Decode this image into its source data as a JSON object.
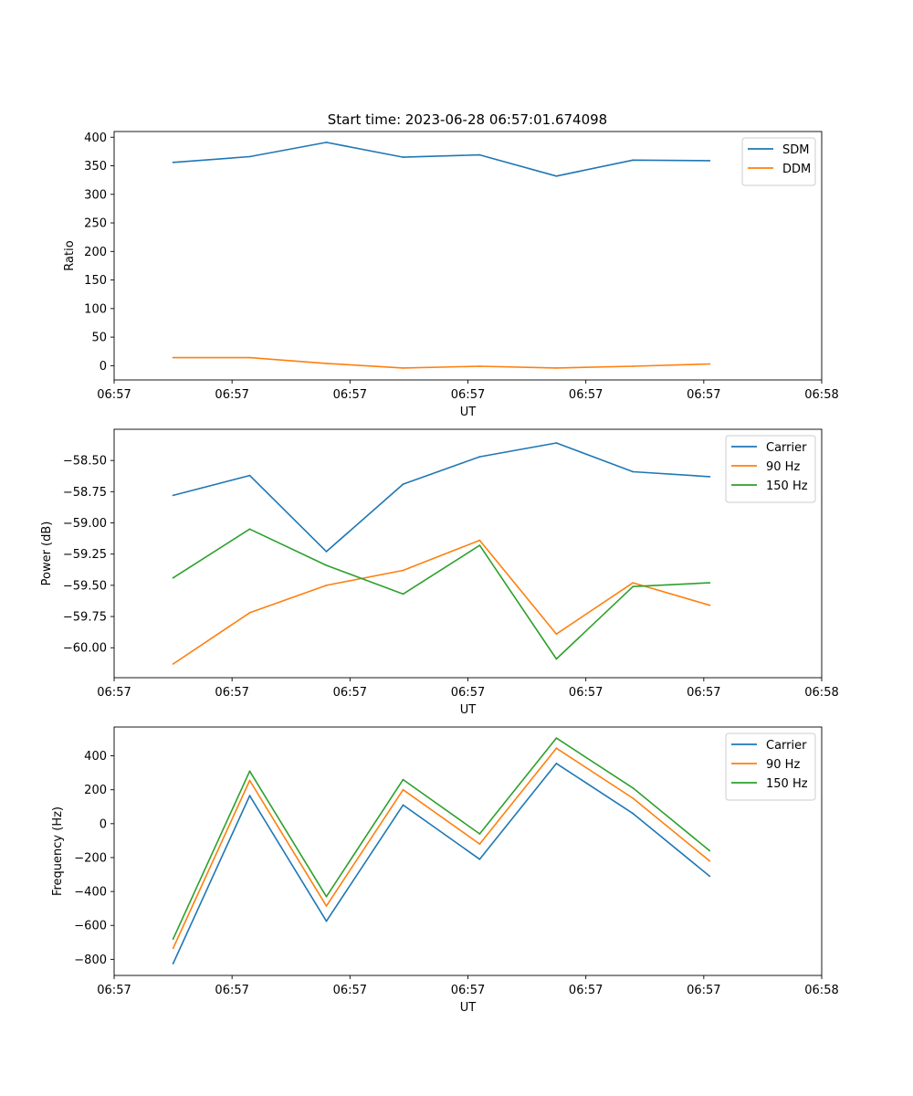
{
  "figure": {
    "title": "Start time: 2023-06-28 06:57:01.674098"
  },
  "chart_data": [
    {
      "type": "line",
      "title": "Start time: 2023-06-28 06:57:01.674098",
      "xlabel": "UT",
      "ylabel": "Ratio",
      "x_tick_labels": [
        "06:57",
        "06:57",
        "06:57",
        "06:57",
        "06:57",
        "06:57",
        "06:58"
      ],
      "xlim": [
        0,
        6
      ],
      "x": [
        0.5,
        1.15,
        1.8,
        2.45,
        3.1,
        3.75,
        4.4,
        5.05
      ],
      "ylim": [
        -25,
        410
      ],
      "y_ticks": [
        0,
        50,
        100,
        150,
        200,
        250,
        300,
        350,
        400
      ],
      "y_tick_labels": [
        "0",
        "50",
        "100",
        "150",
        "200",
        "250",
        "300",
        "350",
        "400"
      ],
      "legend_position": "top-right",
      "grid": false,
      "series": [
        {
          "name": "SDM",
          "color": "#1f77b4",
          "values": [
            356,
            366,
            391,
            365,
            369,
            332,
            360,
            359
          ]
        },
        {
          "name": "DDM",
          "color": "#ff7f0e",
          "values": [
            14,
            14,
            4,
            -4,
            -1,
            -4,
            -1,
            3
          ]
        }
      ]
    },
    {
      "type": "line",
      "xlabel": "UT",
      "ylabel": "Power (dB)",
      "x_tick_labels": [
        "06:57",
        "06:57",
        "06:57",
        "06:57",
        "06:57",
        "06:57",
        "06:58"
      ],
      "xlim": [
        0,
        6
      ],
      "x": [
        0.5,
        1.15,
        1.8,
        2.45,
        3.1,
        3.75,
        4.4,
        5.05
      ],
      "ylim": [
        -60.24,
        -58.25
      ],
      "y_ticks": [
        -60.0,
        -59.75,
        -59.5,
        -59.25,
        -59.0,
        -58.75,
        -58.5
      ],
      "y_tick_labels": [
        "−60.00",
        "−59.75",
        "−59.50",
        "−59.25",
        "−59.00",
        "−58.75",
        "−58.50"
      ],
      "legend_position": "top-right",
      "grid": false,
      "series": [
        {
          "name": "Carrier",
          "color": "#1f77b4",
          "values": [
            -58.78,
            -58.62,
            -59.23,
            -58.69,
            -58.47,
            -58.36,
            -58.59,
            -58.63
          ]
        },
        {
          "name": "90 Hz",
          "color": "#ff7f0e",
          "values": [
            -60.13,
            -59.72,
            -59.5,
            -59.38,
            -59.14,
            -59.89,
            -59.48,
            -59.66
          ]
        },
        {
          "name": "150 Hz",
          "color": "#2ca02c",
          "values": [
            -59.44,
            -59.05,
            -59.34,
            -59.57,
            -59.18,
            -60.09,
            -59.51,
            -59.48
          ]
        }
      ]
    },
    {
      "type": "line",
      "xlabel": "UT",
      "ylabel": "Frequency (Hz)",
      "x_tick_labels": [
        "06:57",
        "06:57",
        "06:57",
        "06:57",
        "06:57",
        "06:57",
        "06:58"
      ],
      "xlim": [
        0,
        6
      ],
      "x": [
        0.5,
        1.15,
        1.8,
        2.45,
        3.1,
        3.75,
        4.4,
        5.05
      ],
      "ylim": [
        -895,
        570
      ],
      "y_ticks": [
        -800,
        -600,
        -400,
        -200,
        0,
        200,
        400
      ],
      "y_tick_labels": [
        "−800",
        "−600",
        "−400",
        "−200",
        "0",
        "200",
        "400"
      ],
      "legend_position": "top-right",
      "grid": false,
      "series": [
        {
          "name": "Carrier",
          "color": "#1f77b4",
          "values": [
            -825,
            165,
            -575,
            110,
            -210,
            355,
            60,
            -310
          ]
        },
        {
          "name": "90 Hz",
          "color": "#ff7f0e",
          "values": [
            -735,
            255,
            -485,
            200,
            -120,
            445,
            150,
            -220
          ]
        },
        {
          "name": "150 Hz",
          "color": "#2ca02c",
          "values": [
            -680,
            310,
            -430,
            260,
            -60,
            505,
            210,
            -160
          ]
        }
      ]
    }
  ]
}
